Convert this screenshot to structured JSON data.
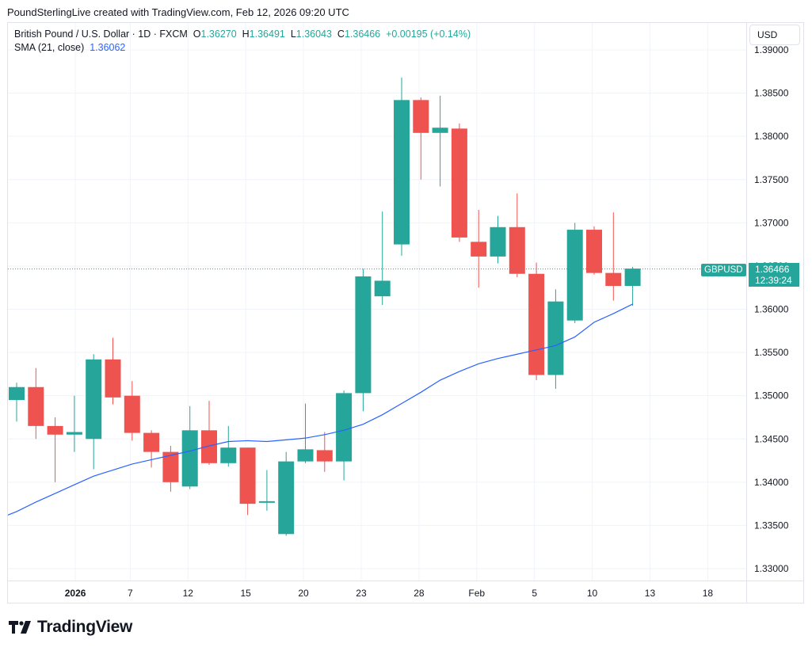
{
  "header": {
    "attribution": "PoundSterlingLive created with TradingView.com, Feb 12, 2026 09:20 UTC"
  },
  "legend": {
    "symbol": "British Pound / U.S. Dollar · 1D · FXCM",
    "o_label": "O",
    "o": "1.36270",
    "h_label": "H",
    "h": "1.36491",
    "l_label": "L",
    "l": "1.36043",
    "c_label": "C",
    "c": "1.36466",
    "change": "+0.00195 (+0.14%)",
    "sma_label": "SMA (21, close)",
    "sma_value": "1.36062"
  },
  "currency": "USD",
  "last_price": {
    "symbol": "GBPUSD",
    "price": "1.36466",
    "countdown": "12:39:24"
  },
  "footer": {
    "brand": "TradingView"
  },
  "colors": {
    "up": "#26a69a",
    "down": "#ef5350",
    "sma": "#2962ff",
    "grid": "#f0f3fa"
  },
  "chart_data": {
    "type": "candlestick",
    "y_ticks": [
      "1.33000",
      "1.33500",
      "1.34000",
      "1.34500",
      "1.35000",
      "1.35500",
      "1.36000",
      "1.36500",
      "1.37000",
      "1.37500",
      "1.38000",
      "1.38500",
      "1.39000"
    ],
    "x_ticks": [
      "2026",
      "7",
      "12",
      "15",
      "20",
      "23",
      "28",
      "Feb",
      "5",
      "10",
      "13",
      "18"
    ],
    "ylim": [
      1.3275,
      1.3925
    ],
    "candles": [
      {
        "o": 1.3495,
        "h": 1.3515,
        "l": 1.347,
        "c": 1.351
      },
      {
        "o": 1.351,
        "h": 1.3532,
        "l": 1.345,
        "c": 1.3465
      },
      {
        "o": 1.3465,
        "h": 1.3475,
        "l": 1.34,
        "c": 1.3455
      },
      {
        "o": 1.3455,
        "h": 1.35,
        "l": 1.3435,
        "c": 1.3458
      },
      {
        "o": 1.345,
        "h": 1.3548,
        "l": 1.3415,
        "c": 1.3542
      },
      {
        "o": 1.3542,
        "h": 1.3567,
        "l": 1.349,
        "c": 1.3498
      },
      {
        "o": 1.35,
        "h": 1.3517,
        "l": 1.3448,
        "c": 1.3457
      },
      {
        "o": 1.3457,
        "h": 1.346,
        "l": 1.3417,
        "c": 1.3435
      },
      {
        "o": 1.3435,
        "h": 1.3442,
        "l": 1.3389,
        "c": 1.34
      },
      {
        "o": 1.3395,
        "h": 1.3488,
        "l": 1.3392,
        "c": 1.346
      },
      {
        "o": 1.346,
        "h": 1.3494,
        "l": 1.342,
        "c": 1.3422
      },
      {
        "o": 1.3422,
        "h": 1.3465,
        "l": 1.3418,
        "c": 1.344
      },
      {
        "o": 1.344,
        "h": 1.344,
        "l": 1.3362,
        "c": 1.3375
      },
      {
        "o": 1.3377,
        "h": 1.3414,
        "l": 1.3367,
        "c": 1.3378
      },
      {
        "o": 1.334,
        "h": 1.3435,
        "l": 1.3338,
        "c": 1.3424
      },
      {
        "o": 1.3424,
        "h": 1.3491,
        "l": 1.3422,
        "c": 1.3438
      },
      {
        "o": 1.3437,
        "h": 1.3458,
        "l": 1.3412,
        "c": 1.3424
      },
      {
        "o": 1.3424,
        "h": 1.3506,
        "l": 1.3402,
        "c": 1.3503
      },
      {
        "o": 1.3503,
        "h": 1.3647,
        "l": 1.3482,
        "c": 1.3638
      },
      {
        "o": 1.3615,
        "h": 1.3713,
        "l": 1.3605,
        "c": 1.3633
      },
      {
        "o": 1.3675,
        "h": 1.3868,
        "l": 1.3662,
        "c": 1.3842
      },
      {
        "o": 1.3842,
        "h": 1.3845,
        "l": 1.375,
        "c": 1.3804
      },
      {
        "o": 1.3804,
        "h": 1.3847,
        "l": 1.3742,
        "c": 1.381
      },
      {
        "o": 1.3809,
        "h": 1.3815,
        "l": 1.3678,
        "c": 1.3683
      },
      {
        "o": 1.3678,
        "h": 1.3715,
        "l": 1.3625,
        "c": 1.3661
      },
      {
        "o": 1.3661,
        "h": 1.3708,
        "l": 1.3653,
        "c": 1.3695
      },
      {
        "o": 1.3695,
        "h": 1.3734,
        "l": 1.3637,
        "c": 1.3641
      },
      {
        "o": 1.3641,
        "h": 1.3654,
        "l": 1.3518,
        "c": 1.3524
      },
      {
        "o": 1.3524,
        "h": 1.3623,
        "l": 1.3508,
        "c": 1.3609
      },
      {
        "o": 1.3587,
        "h": 1.37,
        "l": 1.3584,
        "c": 1.3692
      },
      {
        "o": 1.3692,
        "h": 1.3696,
        "l": 1.364,
        "c": 1.3642
      },
      {
        "o": 1.3642,
        "h": 1.3712,
        "l": 1.361,
        "c": 1.3627
      },
      {
        "o": 1.3627,
        "h": 1.3649,
        "l": 1.3604,
        "c": 1.3647
      }
    ],
    "sma": [
      1.3366,
      1.3377,
      1.3387,
      1.3397,
      1.3407,
      1.3414,
      1.3421,
      1.3426,
      1.3431,
      1.3436,
      1.3442,
      1.3447,
      1.3448,
      1.3447,
      1.3449,
      1.3451,
      1.3455,
      1.346,
      1.3467,
      1.3478,
      1.3491,
      1.3504,
      1.3518,
      1.3528,
      1.3537,
      1.3543,
      1.3548,
      1.3553,
      1.3558,
      1.3568,
      1.3585,
      1.3595,
      1.3606
    ]
  }
}
